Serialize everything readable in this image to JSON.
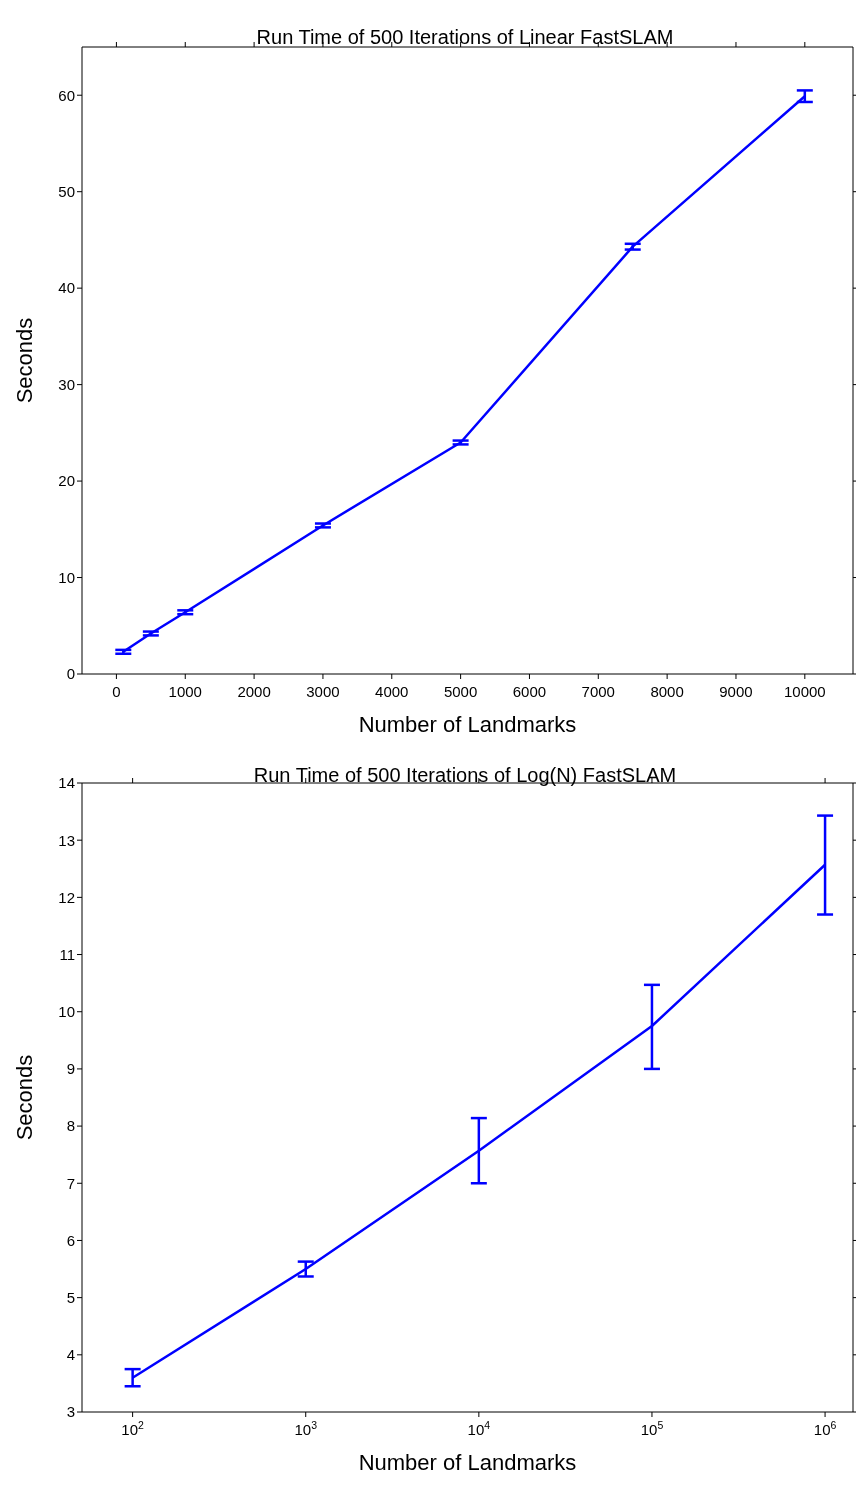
{
  "chart_data": [
    {
      "type": "line",
      "title": "Run Time of 500 Iterations of Linear FastSLAM",
      "xlabel": "Number of Landmarks",
      "ylabel": "Seconds",
      "x": [
        100,
        500,
        1000,
        3000,
        5000,
        7500,
        10000
      ],
      "series": [
        {
          "color": "#0000ff",
          "values": [
            2.3,
            4.2,
            6.4,
            15.4,
            24.0,
            44.3,
            59.9
          ],
          "errors": [
            0.2,
            0.2,
            0.2,
            0.2,
            0.2,
            0.3,
            0.6
          ]
        }
      ],
      "xlim": [
        -500,
        10700
      ],
      "xticks": [
        0,
        1000,
        2000,
        3000,
        4000,
        5000,
        6000,
        7000,
        8000,
        9000,
        10000
      ],
      "ylim": [
        0,
        65
      ],
      "yticks": [
        0,
        10,
        20,
        30,
        40,
        50,
        60
      ],
      "grid": false,
      "legend": false,
      "marker": "none",
      "line_style": "solid"
    },
    {
      "type": "line",
      "title": "Run Time of 500 Iterations of Log(N) FastSLAM",
      "xlabel": "Number of Landmarks",
      "ylabel": "Seconds",
      "x": [
        100,
        1000,
        10000,
        100000,
        1000000
      ],
      "series": [
        {
          "color": "#0000ff",
          "values": [
            3.6,
            5.5,
            7.57,
            9.75,
            12.57
          ],
          "errors": [
            [
              3.45,
              3.75
            ],
            [
              5.37,
              5.63
            ],
            [
              7.0,
              8.14
            ],
            [
              9.0,
              10.47
            ],
            [
              11.7,
              13.43
            ]
          ]
        }
      ],
      "log": "x",
      "xlim": [
        51,
        1450000
      ],
      "xticks": [
        {
          "value": 100,
          "label": "10$^{2}$"
        },
        {
          "value": 1000,
          "label": "10$^{3}$"
        },
        {
          "value": 10000,
          "label": "10$^{4}$"
        },
        {
          "value": 100000,
          "label": "10$^{5}$"
        },
        {
          "value": 1000000,
          "label": "10$^{6}$"
        }
      ],
      "ylim": [
        3,
        14
      ],
      "yticks": [
        3,
        4,
        5,
        6,
        7,
        8,
        9,
        10,
        11,
        12,
        13,
        14
      ],
      "grid": false,
      "legend": false,
      "marker": "none",
      "line_style": "solid"
    }
  ]
}
